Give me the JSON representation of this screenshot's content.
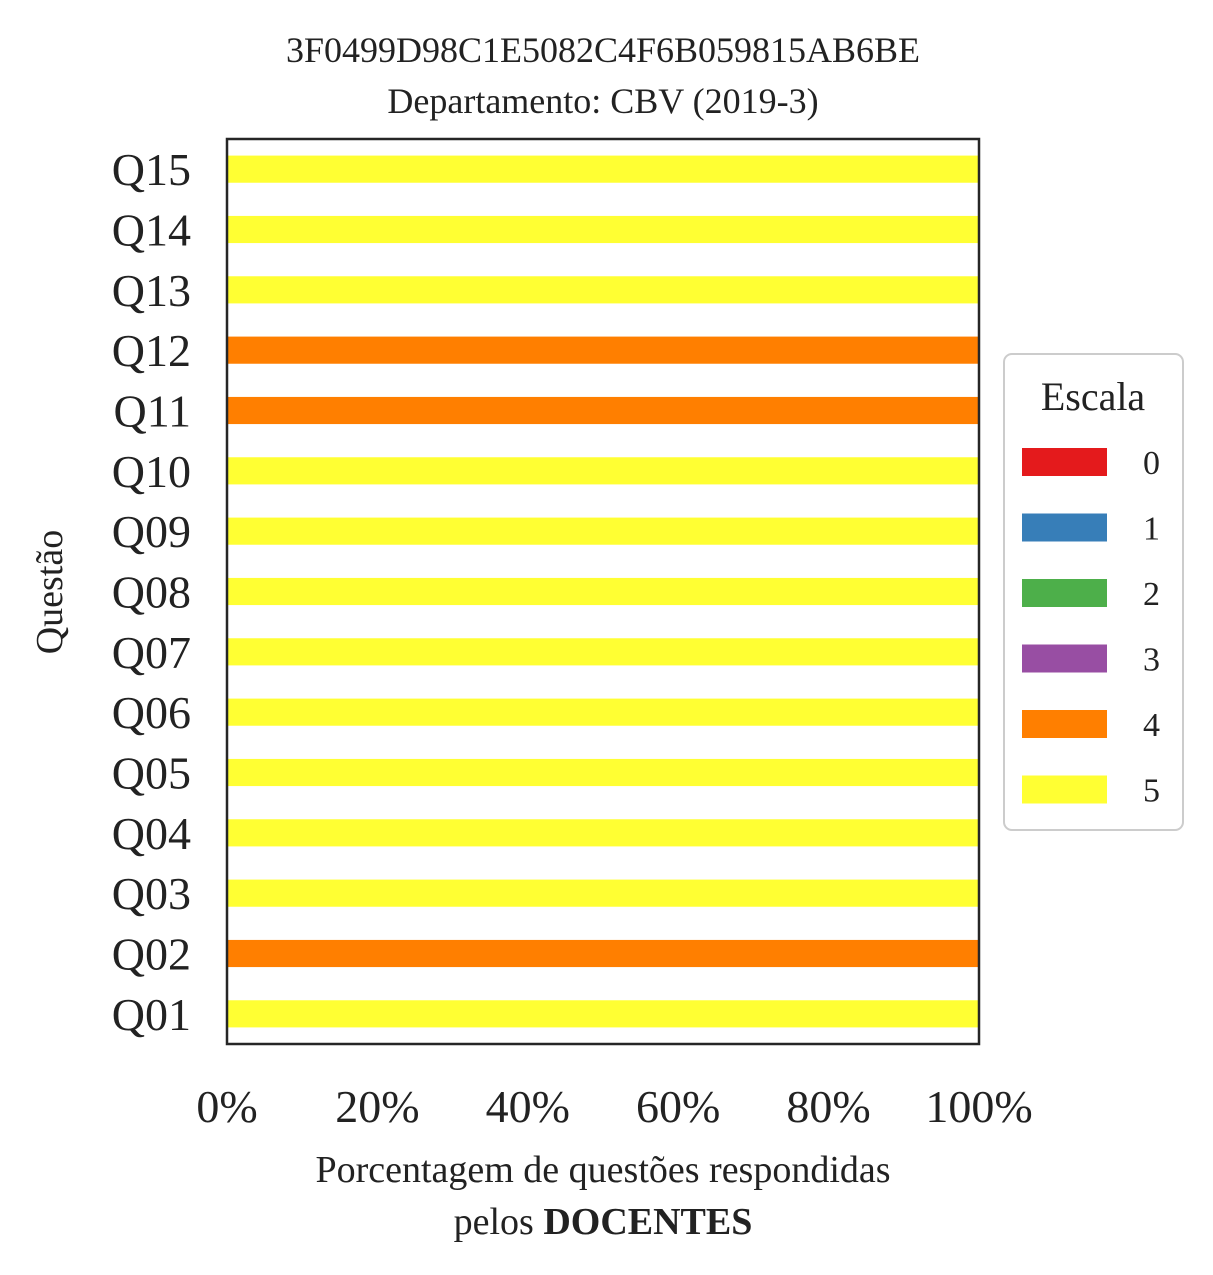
{
  "chart_data": {
    "type": "bar",
    "orientation": "horizontal",
    "stacked": true,
    "title": "3F0499D98C1E5082C4F6B059815AB6BE",
    "subtitle": "Departamento: CBV (2019-3)",
    "ylabel": "Questão",
    "xlabel": "Porcentagem de questões respondidas",
    "xlabel_line2_prefix": "pelos ",
    "xlabel_line2_bold": "DOCENTES",
    "xlim": [
      0,
      100
    ],
    "xticks": [
      "0%",
      "20%",
      "40%",
      "60%",
      "80%",
      "100%"
    ],
    "xtick_values": [
      0,
      20,
      40,
      60,
      80,
      100
    ],
    "categories": [
      "Q01",
      "Q02",
      "Q03",
      "Q04",
      "Q05",
      "Q06",
      "Q07",
      "Q08",
      "Q09",
      "Q10",
      "Q11",
      "Q12",
      "Q13",
      "Q14",
      "Q15"
    ],
    "series": [
      {
        "name": "0",
        "color": "#e41a1c",
        "values": [
          0,
          0,
          0,
          0,
          0,
          0,
          0,
          0,
          0,
          0,
          0,
          0,
          0,
          0,
          0
        ]
      },
      {
        "name": "1",
        "color": "#377eb8",
        "values": [
          0,
          0,
          0,
          0,
          0,
          0,
          0,
          0,
          0,
          0,
          0,
          0,
          0,
          0,
          0
        ]
      },
      {
        "name": "2",
        "color": "#4daf4a",
        "values": [
          0,
          0,
          0,
          0,
          0,
          0,
          0,
          0,
          0,
          0,
          0,
          0,
          0,
          0,
          0
        ]
      },
      {
        "name": "3",
        "color": "#984ea3",
        "values": [
          0,
          0,
          0,
          0,
          0,
          0,
          0,
          0,
          0,
          0,
          0,
          0,
          0,
          0,
          0
        ]
      },
      {
        "name": "4",
        "color": "#ff7f00",
        "values": [
          0,
          100,
          0,
          0,
          0,
          0,
          0,
          0,
          0,
          0,
          100,
          100,
          0,
          0,
          0
        ]
      },
      {
        "name": "5",
        "color": "#ffff33",
        "values": [
          100,
          0,
          100,
          100,
          100,
          100,
          100,
          100,
          100,
          100,
          0,
          0,
          100,
          100,
          100
        ]
      }
    ],
    "legend": {
      "title": "Escala",
      "position": "right"
    },
    "grid": false
  }
}
